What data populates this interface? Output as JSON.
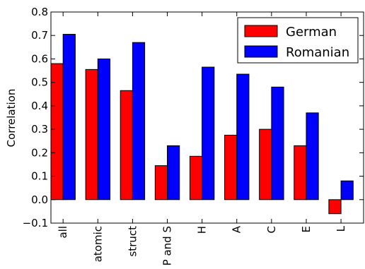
{
  "chart_data": {
    "type": "bar",
    "ylabel": "Correlation",
    "xlabel": "",
    "categories": [
      "all",
      "atomic",
      "struct",
      "P and S",
      "H",
      "A",
      "C",
      "E",
      "L"
    ],
    "series": [
      {
        "name": "German",
        "color": "#ff0000",
        "values": [
          0.58,
          0.555,
          0.465,
          0.145,
          0.185,
          0.275,
          0.3,
          0.23,
          -0.06
        ]
      },
      {
        "name": "Romanian",
        "color": "#0000ff",
        "values": [
          0.705,
          0.6,
          0.67,
          0.23,
          0.565,
          0.535,
          0.48,
          0.37,
          0.08
        ]
      }
    ],
    "ylim": [
      -0.1,
      0.8
    ],
    "yticks": [
      "−0.1",
      "0.0",
      "0.1",
      "0.2",
      "0.3",
      "0.4",
      "0.5",
      "0.6",
      "0.7",
      "0.8"
    ],
    "legend_position": "top-right",
    "grid": false
  }
}
